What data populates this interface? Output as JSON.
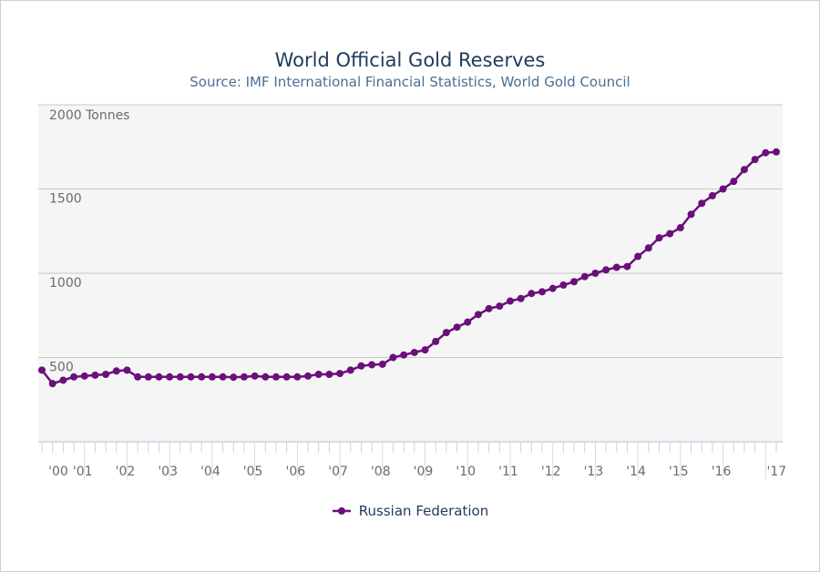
{
  "chart_data": {
    "type": "line",
    "title": "World Official Gold Reserves",
    "subtitle": "Source: IMF International Financial Statistics, World Gold Council",
    "ylabel": "2000 Tonnes",
    "ylim": [
      0,
      2000
    ],
    "ytick_values": [
      500,
      1000,
      1500
    ],
    "ytick_labels": [
      "500",
      "1000",
      "1500"
    ],
    "xlim": [
      2000,
      2017.25
    ],
    "xticks": [
      {
        "label": "'00",
        "value": 2000
      },
      {
        "label": "'01",
        "value": 2001
      },
      {
        "label": "'02",
        "value": 2002
      },
      {
        "label": "'03",
        "value": 2003
      },
      {
        "label": "'04",
        "value": 2004
      },
      {
        "label": "'05",
        "value": 2005
      },
      {
        "label": "'06",
        "value": 2006
      },
      {
        "label": "'07",
        "value": 2007
      },
      {
        "label": "'08",
        "value": 2008
      },
      {
        "label": "'09",
        "value": 2009
      },
      {
        "label": "'10",
        "value": 2010
      },
      {
        "label": "'11",
        "value": 2011
      },
      {
        "label": "'12",
        "value": 2012
      },
      {
        "label": "'13",
        "value": 2013
      },
      {
        "label": "'14",
        "value": 2014
      },
      {
        "label": "'15",
        "value": 2015
      },
      {
        "label": "'16",
        "value": 2016
      },
      {
        "label": "'17",
        "value": 2017
      }
    ],
    "series": [
      {
        "name": "Russian Federation",
        "color": "#6b0f7a",
        "x": [
          2000.0,
          2000.25,
          2000.5,
          2000.75,
          2001.0,
          2001.25,
          2001.5,
          2001.75,
          2002.0,
          2002.25,
          2002.5,
          2002.75,
          2003.0,
          2003.25,
          2003.5,
          2003.75,
          2004.0,
          2004.25,
          2004.5,
          2004.75,
          2005.0,
          2005.25,
          2005.5,
          2005.75,
          2006.0,
          2006.25,
          2006.5,
          2006.75,
          2007.0,
          2007.25,
          2007.5,
          2007.75,
          2008.0,
          2008.25,
          2008.5,
          2008.75,
          2009.0,
          2009.25,
          2009.5,
          2009.75,
          2010.0,
          2010.25,
          2010.5,
          2010.75,
          2011.0,
          2011.25,
          2011.5,
          2011.75,
          2012.0,
          2012.25,
          2012.5,
          2012.75,
          2013.0,
          2013.25,
          2013.5,
          2013.75,
          2014.0,
          2014.25,
          2014.5,
          2014.75,
          2015.0,
          2015.25,
          2015.5,
          2015.75,
          2016.0,
          2016.25,
          2016.5,
          2016.75,
          2017.0,
          2017.25
        ],
        "values": [
          425,
          345,
          365,
          385,
          390,
          395,
          400,
          420,
          425,
          385,
          385,
          385,
          385,
          385,
          385,
          385,
          385,
          385,
          383,
          385,
          390,
          385,
          385,
          385,
          385,
          390,
          400,
          400,
          405,
          425,
          450,
          457,
          460,
          500,
          515,
          530,
          545,
          595,
          648,
          680,
          710,
          755,
          790,
          805,
          835,
          850,
          880,
          890,
          910,
          930,
          950,
          980,
          1000,
          1020,
          1035,
          1040,
          1100,
          1150,
          1210,
          1235,
          1270,
          1350,
          1415,
          1460,
          1500,
          1545,
          1615,
          1675,
          1715,
          1720
        ]
      }
    ]
  },
  "legend": {
    "label": "Russian Federation",
    "marker_icon": "line-dot-marker-icon"
  }
}
